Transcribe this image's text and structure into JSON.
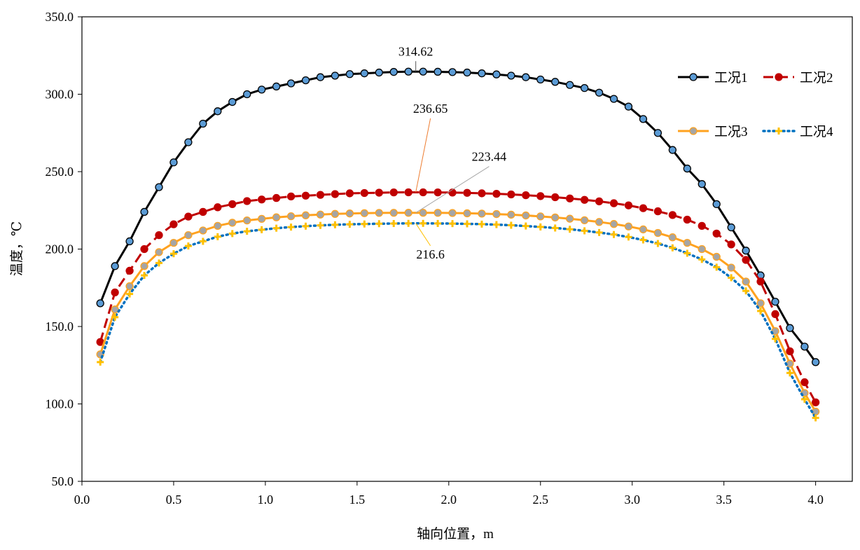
{
  "chart_data": {
    "type": "line",
    "title": "",
    "xlabel": "轴向位置，m",
    "ylabel": "温度，℃",
    "xlim": [
      0.0,
      4.2
    ],
    "ylim": [
      50.0,
      350.0
    ],
    "x_ticks": [
      "0.0",
      "0.5",
      "1.0",
      "1.5",
      "2.0",
      "2.5",
      "3.0",
      "3.5",
      "4.0"
    ],
    "y_ticks": [
      "50.0",
      "100.0",
      "150.0",
      "200.0",
      "250.0",
      "300.0",
      "350.0"
    ],
    "x": [
      0.1,
      0.18,
      0.26,
      0.34,
      0.42,
      0.5,
      0.58,
      0.66,
      0.74,
      0.82,
      0.9,
      0.98,
      1.06,
      1.14,
      1.22,
      1.3,
      1.38,
      1.46,
      1.54,
      1.62,
      1.7,
      1.78,
      1.86,
      1.94,
      2.02,
      2.1,
      2.18,
      2.26,
      2.34,
      2.42,
      2.5,
      2.58,
      2.66,
      2.74,
      2.82,
      2.9,
      2.98,
      3.06,
      3.14,
      3.22,
      3.3,
      3.38,
      3.46,
      3.54,
      3.62,
      3.7,
      3.78,
      3.86,
      3.94,
      4.0
    ],
    "legend_position": "top-right",
    "series": [
      {
        "name": "工况1",
        "color": "#000000",
        "marker_color": "#5b9bd5",
        "line_style": "solid",
        "marker": "circle",
        "values": [
          165,
          189,
          205,
          224,
          240,
          256,
          269,
          281,
          289,
          295,
          300,
          303,
          305,
          307,
          309,
          311,
          312,
          313,
          313.5,
          314,
          314.4,
          314.6,
          314.6,
          314.5,
          314.3,
          314,
          313.5,
          312.8,
          312,
          311,
          309.5,
          308,
          306,
          304,
          301,
          297,
          292,
          284,
          275,
          264,
          252,
          242,
          229,
          214,
          199,
          183,
          166,
          149,
          137,
          127
        ]
      },
      {
        "name": "工况2",
        "color": "#c00000",
        "marker_color": "#c00000",
        "line_style": "dashed",
        "marker": "circle",
        "values": [
          140,
          172,
          186,
          200,
          209,
          216,
          221,
          224,
          227,
          229,
          231,
          232,
          233,
          234,
          234.5,
          235,
          235.5,
          236,
          236.2,
          236.4,
          236.6,
          236.65,
          236.65,
          236.6,
          236.5,
          236.3,
          236,
          235.7,
          235.3,
          234.8,
          234.2,
          233.5,
          232.7,
          231.8,
          230.8,
          229.6,
          228.2,
          226.4,
          224.4,
          222,
          219,
          215,
          210,
          203,
          193,
          179,
          158,
          134,
          114,
          101
        ]
      },
      {
        "name": "工况3",
        "color": "#ffa21f",
        "marker_color": "#a5a5a5",
        "line_style": "solid",
        "marker": "circle",
        "values": [
          132,
          161,
          176,
          189,
          198,
          204,
          209,
          212,
          215,
          217,
          218.5,
          219.5,
          220.5,
          221.2,
          221.8,
          222.3,
          222.7,
          223,
          223.2,
          223.35,
          223.42,
          223.44,
          223.44,
          223.4,
          223.3,
          223.1,
          222.9,
          222.6,
          222.2,
          221.7,
          221.1,
          220.4,
          219.6,
          218.6,
          217.5,
          216.2,
          214.6,
          212.7,
          210.4,
          207.6,
          204,
          200,
          195,
          188,
          179,
          165,
          147,
          126,
          107,
          95
        ]
      },
      {
        "name": "工况4",
        "color": "#0070c0",
        "marker_color": "#ffc000",
        "line_style": "dotted",
        "marker": "plus",
        "values": [
          127,
          156,
          171,
          183,
          191,
          197,
          202,
          205,
          208,
          210,
          211.5,
          212.5,
          213.5,
          214.2,
          214.8,
          215.3,
          215.7,
          216,
          216.2,
          216.4,
          216.5,
          216.6,
          216.6,
          216.55,
          216.45,
          216.3,
          216.1,
          215.8,
          215.4,
          214.9,
          214.3,
          213.6,
          212.8,
          211.8,
          210.7,
          209.4,
          207.8,
          205.9,
          203.6,
          200.8,
          197.3,
          193.3,
          188.3,
          181.5,
          173,
          160,
          142,
          120,
          103,
          91
        ]
      }
    ],
    "annotations": [
      {
        "text": "314.62",
        "x": 1.82,
        "y": 314.62,
        "label_x": 1.82,
        "label_y": 325,
        "leader_color": "#555555"
      },
      {
        "text": "236.65",
        "x": 1.82,
        "y": 236.65,
        "label_x": 1.9,
        "label_y": 288,
        "leader_color": "#ed7d31"
      },
      {
        "text": "223.44",
        "x": 1.82,
        "y": 223.44,
        "label_x": 2.22,
        "label_y": 257,
        "leader_color": "#a5a5a5"
      },
      {
        "text": "216.6",
        "x": 1.82,
        "y": 216.6,
        "label_x": 1.9,
        "label_y": 194,
        "leader_color": "#ffc000"
      }
    ]
  }
}
